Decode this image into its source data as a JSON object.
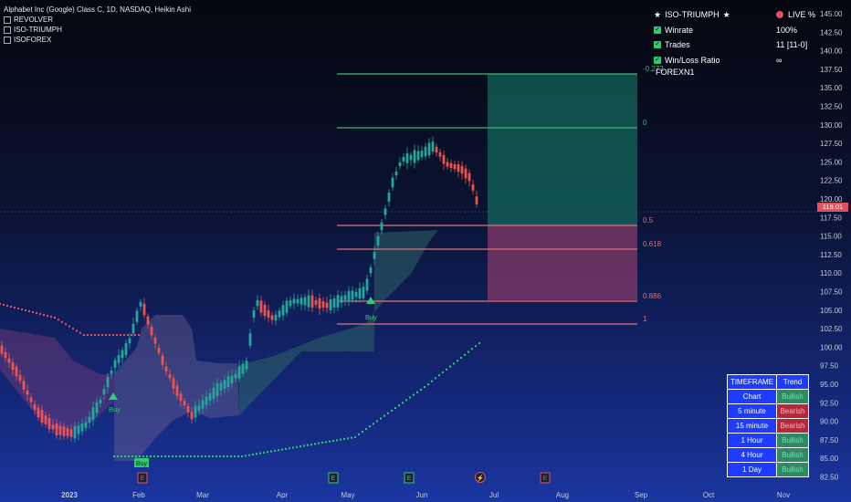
{
  "legend": {
    "title": "Alphabet Inc (Google) Class C, 1D, NASDAQ, Heikin Ashi",
    "indicators": [
      "REVOLVER",
      "ISO-TRIUMPH",
      "ISOFOREX"
    ]
  },
  "stats": {
    "header_left": "ISO-TRIUMPH",
    "header_right": "LIVE %",
    "rows": [
      {
        "label": "Winrate",
        "value": "100%"
      },
      {
        "label": "Trades",
        "value": "11 [11-0]"
      },
      {
        "label": "Win/Loss Ratio",
        "value": "∞"
      }
    ]
  },
  "forex_label": "FOREXN1",
  "price_axis": {
    "ticks": [
      "145.00",
      "142.50",
      "140.00",
      "137.50",
      "135.00",
      "132.50",
      "130.00",
      "127.50",
      "125.00",
      "122.50",
      "120.00",
      "117.50",
      "115.00",
      "112.50",
      "110.00",
      "107.50",
      "105.00",
      "102.50",
      "100.00",
      "97.50",
      "95.00",
      "92.50",
      "90.00",
      "87.50",
      "85.00",
      "82.50"
    ],
    "current_price": "119.01"
  },
  "time_axis": {
    "ticks": [
      "2023",
      "Feb",
      "Mar",
      "Apr",
      "May",
      "Jun",
      "Jul",
      "Aug",
      "Sep",
      "Oct",
      "Nov"
    ]
  },
  "fib_levels": [
    {
      "label": "-0.272",
      "color": "#4caf7d"
    },
    {
      "label": "0",
      "color": "#4caf7d"
    },
    {
      "label": "0.5",
      "color": "#e0707a"
    },
    {
      "label": "0.618",
      "color": "#e0707a"
    },
    {
      "label": "0.886",
      "color": "#e0707a"
    },
    {
      "label": "1",
      "color": "#e0707a"
    }
  ],
  "signals": [
    "Buy",
    "Buy",
    "Buy"
  ],
  "event_markers": [
    "E",
    "E",
    "E",
    "⚡",
    "E"
  ],
  "timeframe_table": {
    "headers": [
      "TIMEFRAME",
      "Trend"
    ],
    "rows": [
      {
        "tf": "Chart",
        "trend": "Bullish",
        "state": "bull"
      },
      {
        "tf": "5 minute",
        "trend": "Bearish",
        "state": "bear"
      },
      {
        "tf": "15 minute",
        "trend": "Bearish",
        "state": "bear"
      },
      {
        "tf": "1 Hour",
        "trend": "Bullish",
        "state": "bull"
      },
      {
        "tf": "4 Hour",
        "trend": "Bullish",
        "state": "bull"
      },
      {
        "tf": "1 Day",
        "trend": "Bullish",
        "state": "bull"
      }
    ]
  },
  "colors": {
    "bull": "#26a69a",
    "bear": "#ef5350",
    "target_zone": "#16856e",
    "stop_zone": "#8a3a6a"
  }
}
